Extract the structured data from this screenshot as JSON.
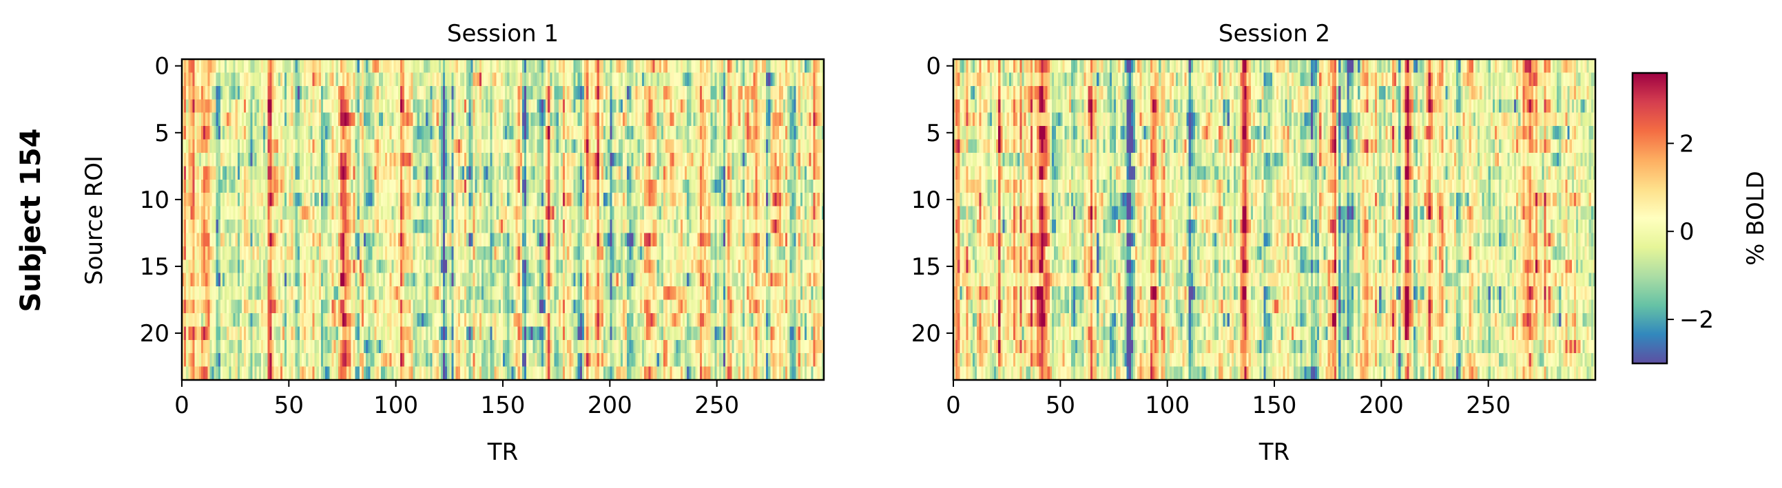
{
  "figure": {
    "row_label": "Subject 154"
  },
  "colorbar": {
    "label": "% BOLD",
    "colormap": "Spectral_r",
    "range": [
      -3.0,
      3.6
    ],
    "ticks": [
      -2,
      0,
      2
    ],
    "tick_labels": [
      "−2",
      "0",
      "2"
    ],
    "colors": [
      "#5e4fa2",
      "#3288bd",
      "#66c2a5",
      "#abdda4",
      "#e6f598",
      "#ffffbf",
      "#fee08b",
      "#fdae61",
      "#f46d43",
      "#d53e4f",
      "#9e0142"
    ]
  },
  "chart_data": [
    {
      "type": "heatmap",
      "title": "Session 1",
      "xlabel": "TR",
      "ylabel": "Source ROI",
      "n_rows": 24,
      "n_cols": 300,
      "xlim": [
        0,
        300
      ],
      "ylim": [
        23.5,
        -0.5
      ],
      "x_ticks": [
        0,
        50,
        100,
        150,
        200,
        250
      ],
      "y_ticks": [
        0,
        5,
        10,
        15,
        20
      ],
      "seed": 154,
      "strong_columns": [
        {
          "tr": 41,
          "value": 2.4
        },
        {
          "tr": 60,
          "value": 1.3
        },
        {
          "tr": 126,
          "value": -2.2
        },
        {
          "tr": 122,
          "value": -1.6
        },
        {
          "tr": 160,
          "value": -1.5
        },
        {
          "tr": 178,
          "value": 1.8
        },
        {
          "tr": 186,
          "value": -1.8
        },
        {
          "tr": 245,
          "value": 1.6
        },
        {
          "tr": 279,
          "value": 3.0
        },
        {
          "tr": 8,
          "value": 1.4
        }
      ]
    },
    {
      "type": "heatmap",
      "title": "Session 2",
      "xlabel": "TR",
      "ylabel": "",
      "n_rows": 24,
      "n_cols": 300,
      "xlim": [
        0,
        300
      ],
      "ylim": [
        23.5,
        -0.5
      ],
      "x_ticks": [
        0,
        50,
        100,
        150,
        200,
        250
      ],
      "y_ticks": [
        0,
        5,
        10,
        15,
        20
      ],
      "seed": 2154,
      "strong_columns": [
        {
          "tr": 41,
          "value": 2.6
        },
        {
          "tr": 28,
          "value": 1.4
        },
        {
          "tr": 82,
          "value": -1.7
        },
        {
          "tr": 135,
          "value": 2.4
        },
        {
          "tr": 177,
          "value": 2.0
        },
        {
          "tr": 212,
          "value": 1.9
        },
        {
          "tr": 240,
          "value": 1.8
        },
        {
          "tr": 268,
          "value": 1.2
        },
        {
          "tr": 110,
          "value": -1.2
        }
      ]
    }
  ]
}
